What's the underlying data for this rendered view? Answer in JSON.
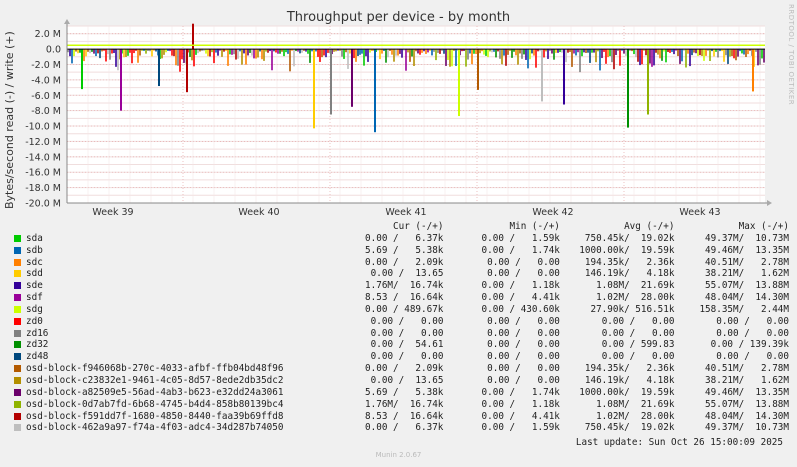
{
  "title": "Throughput per device - by month",
  "side_note": "RRDTOOL / TOBI OETIKER",
  "chart_data": {
    "type": "area",
    "title": "Throughput per device - by month",
    "ylabel": "Bytes/second read (-) / write (+)",
    "ylim": [
      -20000000,
      3000000
    ],
    "yticks": [
      {
        "value": 2000000,
        "label": "2.0 M"
      },
      {
        "value": 0,
        "label": "0.0"
      },
      {
        "value": -2000000,
        "label": "-2.0 M"
      },
      {
        "value": -4000000,
        "label": "-4.0 M"
      },
      {
        "value": -6000000,
        "label": "-6.0 M"
      },
      {
        "value": -8000000,
        "label": "-8.0 M"
      },
      {
        "value": -10000000,
        "label": "-10.0 M"
      },
      {
        "value": -12000000,
        "label": "-12.0 M"
      },
      {
        "value": -14000000,
        "label": "-14.0 M"
      },
      {
        "value": -16000000,
        "label": "-16.0 M"
      },
      {
        "value": -18000000,
        "label": "-18.0 M"
      },
      {
        "value": -20000000,
        "label": "-20.0 M"
      }
    ],
    "xticks": [
      "Week 39",
      "Week 40",
      "Week 41",
      "Week 42",
      "Week 43"
    ],
    "grid": true,
    "notable_read_spikes_millions": [
      -5.2,
      -8.0,
      -4.8,
      -5.6,
      -10.3,
      -8.5,
      -7.5,
      -10.8,
      -8.7,
      -5.3,
      -6.8,
      -7.2,
      -10.2,
      -8.5,
      -5.5
    ],
    "notable_write_spike_millions": 3.3,
    "reference_line_millions": 0.5
  },
  "legend": {
    "headers": [
      "Cur (-/+)",
      "Min (-/+)",
      "Avg (-/+)",
      "Max (-/+)"
    ],
    "rows": [
      {
        "name": "sda",
        "color": "#00cc00",
        "cur": "0.00 /   6.37k",
        "min": "0.00 /   1.59k",
        "avg": "750.45k/  19.02k",
        "max": "49.37M/  10.73M"
      },
      {
        "name": "sdb",
        "color": "#0066b3",
        "cur": "5.69 /   5.38k",
        "min": "0.00 /   1.74k",
        "avg": "1000.00k/  19.59k",
        "max": "49.46M/  13.35M"
      },
      {
        "name": "sdc",
        "color": "#ff8000",
        "cur": "0.00 /   2.09k",
        "min": "0.00 /   0.00",
        "avg": "194.35k/   2.36k",
        "max": "40.51M/   2.78M"
      },
      {
        "name": "sdd",
        "color": "#ffcc00",
        "cur": "0.00 /  13.65",
        "min": "0.00 /   0.00",
        "avg": "146.19k/   4.18k",
        "max": "38.21M/   1.62M"
      },
      {
        "name": "sde",
        "color": "#330099",
        "cur": "1.76M/  16.74k",
        "min": "0.00 /   1.18k",
        "avg": "1.08M/  21.69k",
        "max": "55.07M/  13.88M"
      },
      {
        "name": "sdf",
        "color": "#990099",
        "cur": "8.53 /  16.64k",
        "min": "0.00 /   4.41k",
        "avg": "1.02M/  28.00k",
        "max": "48.04M/  14.30M"
      },
      {
        "name": "sdg",
        "color": "#ccff00",
        "cur": "0.00 / 489.67k",
        "min": "0.00 / 430.60k",
        "avg": "27.90k/ 516.51k",
        "max": "158.35M/   2.44M"
      },
      {
        "name": "zd0",
        "color": "#ff0000",
        "cur": "0.00 /   0.00",
        "min": "0.00 /   0.00",
        "avg": "0.00 /   0.00",
        "max": "0.00 /   0.00"
      },
      {
        "name": "zd16",
        "color": "#808080",
        "cur": "0.00 /   0.00",
        "min": "0.00 /   0.00",
        "avg": "0.00 /   0.00",
        "max": "0.00 /   0.00"
      },
      {
        "name": "zd32",
        "color": "#008f00",
        "cur": "0.00 /  54.61",
        "min": "0.00 /   0.00",
        "avg": "0.00 / 599.83",
        "max": "0.00 / 139.39k"
      },
      {
        "name": "zd48",
        "color": "#00487d",
        "cur": "0.00 /   0.00",
        "min": "0.00 /   0.00",
        "avg": "0.00 /   0.00",
        "max": "0.00 /   0.00"
      },
      {
        "name": "osd-block-f946068b-270c-4033-afbf-ffb04bd48f96",
        "color": "#b35a00",
        "cur": "0.00 /   2.09k",
        "min": "0.00 /   0.00",
        "avg": "194.35k/   2.36k",
        "max": "40.51M/   2.78M"
      },
      {
        "name": "osd-block-c23832e1-9461-4c05-8d57-8ede2db35dc2",
        "color": "#b38f00",
        "cur": "0.00 /  13.65",
        "min": "0.00 /   0.00",
        "avg": "146.19k/   4.18k",
        "max": "38.21M/   1.62M"
      },
      {
        "name": "osd-block-a82509e5-56ad-4ab3-b623-e32dd24a3061",
        "color": "#6b006b",
        "cur": "5.69 /   5.38k",
        "min": "0.00 /   1.74k",
        "avg": "1000.00k/  19.59k",
        "max": "49.46M/  13.35M"
      },
      {
        "name": "osd-block-0d7ab7fd-6b68-4745-b4d4-858b80139bc4",
        "color": "#8fb300",
        "cur": "1.76M/  16.74k",
        "min": "0.00 /   1.18k",
        "avg": "1.08M/  21.69k",
        "max": "55.07M/  13.88M"
      },
      {
        "name": "osd-block-f591dd7f-1680-4850-8440-faa39b69ffd8",
        "color": "#b30000",
        "cur": "8.53 /  16.64k",
        "min": "0.00 /   4.41k",
        "avg": "1.02M/  28.00k",
        "max": "48.04M/  14.30M"
      },
      {
        "name": "osd-block-462a9a97-f74a-4f03-adc4-34d287b74050",
        "color": "#bebebe",
        "cur": "0.00 /   6.37k",
        "min": "0.00 /   1.59k",
        "avg": "750.45k/  19.02k",
        "max": "49.37M/  10.73M"
      }
    ]
  },
  "footer": "Last update: Sun Oct 26 15:00:09 2025",
  "munin_version": "Munin 2.0.67"
}
